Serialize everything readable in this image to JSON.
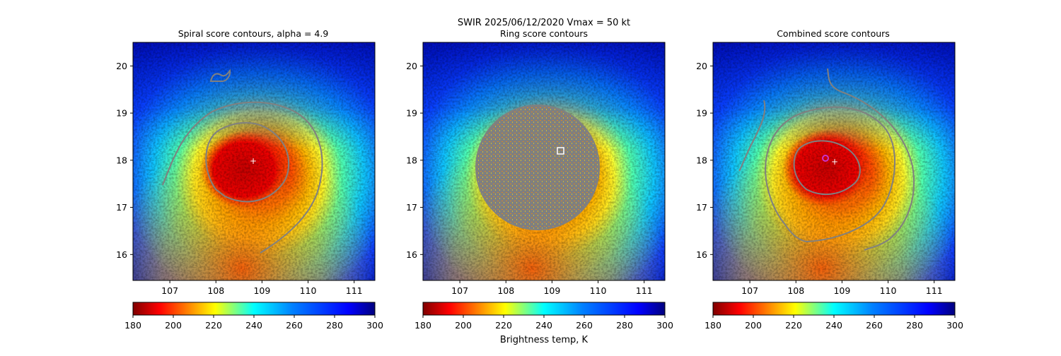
{
  "figure": {
    "suptitle": "SWIR  2025/06/12/2020    Vmax = 50 kt",
    "colorbar_label": "Brightness temp, K"
  },
  "colors": {
    "contour": "#808080",
    "marker_center": "#ffffff",
    "marker_combined": "#cc33cc",
    "colormap": "jet_r"
  },
  "chart_data": [
    {
      "type": "heatmap",
      "title": "Spiral score contours, alpha =  4.9",
      "xlim": [
        106.2,
        111.45
      ],
      "ylim": [
        15.45,
        20.5
      ],
      "xticks": [
        "107",
        "108",
        "109",
        "110",
        "111"
      ],
      "yticks": [
        "16",
        "17",
        "18",
        "19",
        "20"
      ],
      "overlay": "spiral contours",
      "center_marker": [
        108.8,
        17.97
      ],
      "colorbar": {
        "range": [
          180,
          300
        ],
        "ticks": [
          "180",
          "200",
          "220",
          "240",
          "260",
          "280",
          "300"
        ]
      }
    },
    {
      "type": "heatmap",
      "title": "Ring score contours",
      "xlim": [
        106.2,
        111.45
      ],
      "ylim": [
        15.45,
        20.5
      ],
      "xticks": [
        "107",
        "108",
        "109",
        "110",
        "111"
      ],
      "yticks": [
        "16",
        "17",
        "18",
        "19",
        "20"
      ],
      "overlay": "ring score scatter",
      "ring_marker": [
        109.25,
        18.17
      ],
      "colorbar": {
        "range": [
          180,
          300
        ],
        "ticks": [
          "180",
          "200",
          "220",
          "240",
          "260",
          "280",
          "300"
        ]
      }
    },
    {
      "type": "heatmap",
      "title": "Combined score contours",
      "xlim": [
        106.2,
        111.45
      ],
      "ylim": [
        15.45,
        20.5
      ],
      "xticks": [
        "107",
        "108",
        "109",
        "110",
        "111"
      ],
      "yticks": [
        "16",
        "17",
        "18",
        "19",
        "20"
      ],
      "overlay": "combined contours",
      "center_marker": [
        108.85,
        17.95
      ],
      "combined_marker": [
        108.65,
        18.05
      ],
      "colorbar": {
        "range": [
          180,
          300
        ],
        "ticks": [
          "180",
          "200",
          "220",
          "240",
          "260",
          "280",
          "300"
        ]
      }
    }
  ]
}
